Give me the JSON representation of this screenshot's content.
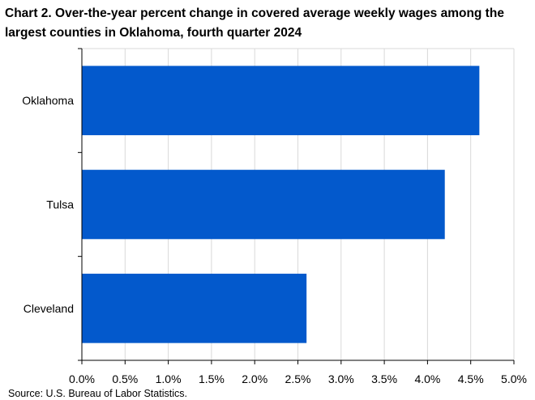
{
  "chart_data": {
    "type": "bar",
    "orientation": "horizontal",
    "title": "Chart 2. Over-the-year percent change in covered average weekly wages among the largest counties in Oklahoma, fourth quarter 2024",
    "categories": [
      "Oklahoma",
      "Tulsa",
      "Cleveland"
    ],
    "values": [
      4.6,
      4.2,
      2.6
    ],
    "xlim": [
      0,
      5
    ],
    "xticks": [
      "0.0%",
      "0.5%",
      "1.0%",
      "1.5%",
      "2.0%",
      "2.5%",
      "3.0%",
      "3.5%",
      "4.0%",
      "4.5%",
      "5.0%"
    ],
    "xlabel": "",
    "ylabel": "",
    "grid": "vertical",
    "bar_color": "#0359CC",
    "grid_color": "#D9D9D9",
    "legend": "none",
    "source": "Source: U.S. Bureau of Labor Statistics."
  }
}
